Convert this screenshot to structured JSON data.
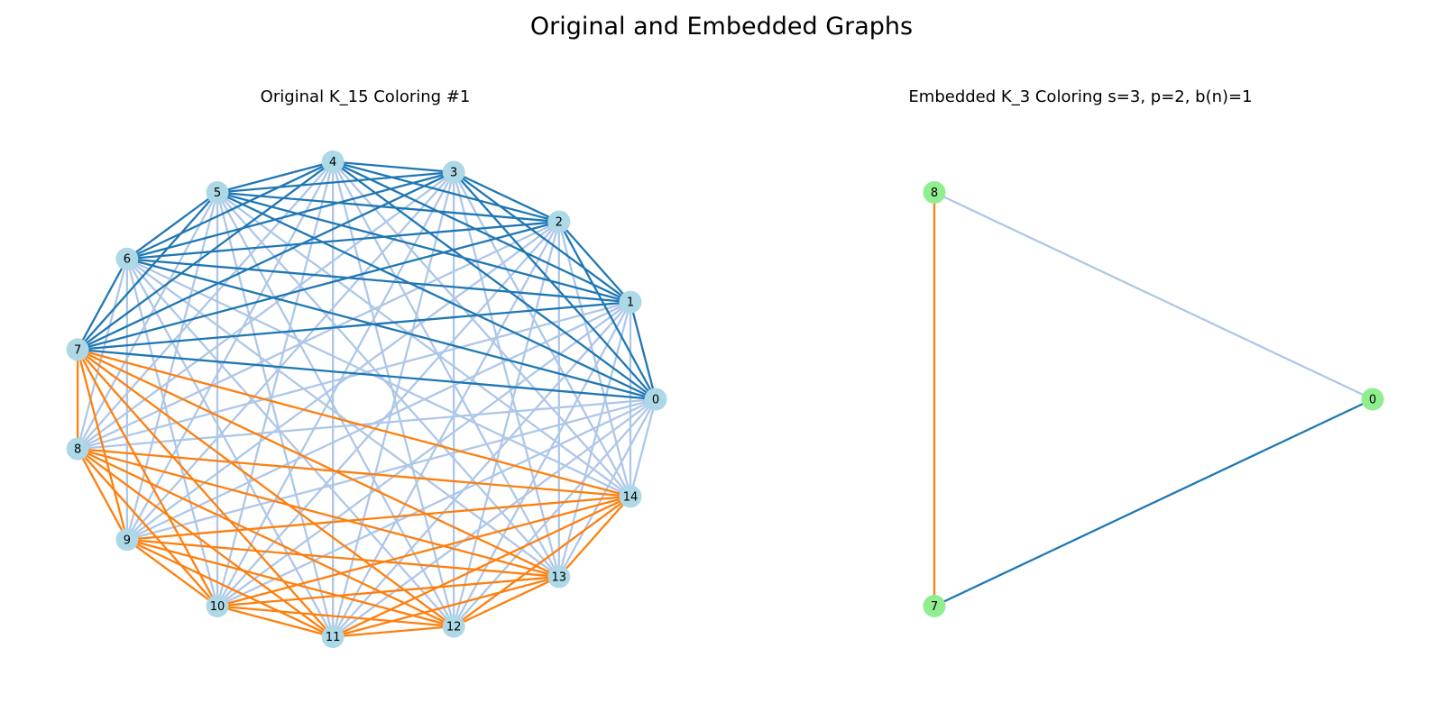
{
  "figure": {
    "title": "Original and Embedded Graphs"
  },
  "left_graph": {
    "title": "Original K_15 Coloring #1",
    "node_color": "#add8e6",
    "node_order": [
      "0",
      "1",
      "2",
      "3",
      "4",
      "5",
      "6",
      "7",
      "8",
      "9",
      "10",
      "11",
      "12",
      "13",
      "14"
    ],
    "color_map": {
      "dark_blue": "#1f77b4",
      "light_blue": "#aec7e8",
      "orange": "#ff7f0e"
    },
    "color_rule": "edges among nodes 0-7 dark_blue; edges among nodes 7-14 orange; all other edges light_blue"
  },
  "right_graph": {
    "title": "Embedded K_3 Coloring s=3, p=2, b(n)=1",
    "node_color": "#90ee90",
    "nodes": [
      "0",
      "8",
      "7"
    ],
    "edges": [
      {
        "from": "8",
        "to": "0",
        "color": "#aec7e8"
      },
      {
        "from": "7",
        "to": "0",
        "color": "#1f77b4"
      },
      {
        "from": "8",
        "to": "7",
        "color": "#ff7f0e"
      }
    ]
  }
}
